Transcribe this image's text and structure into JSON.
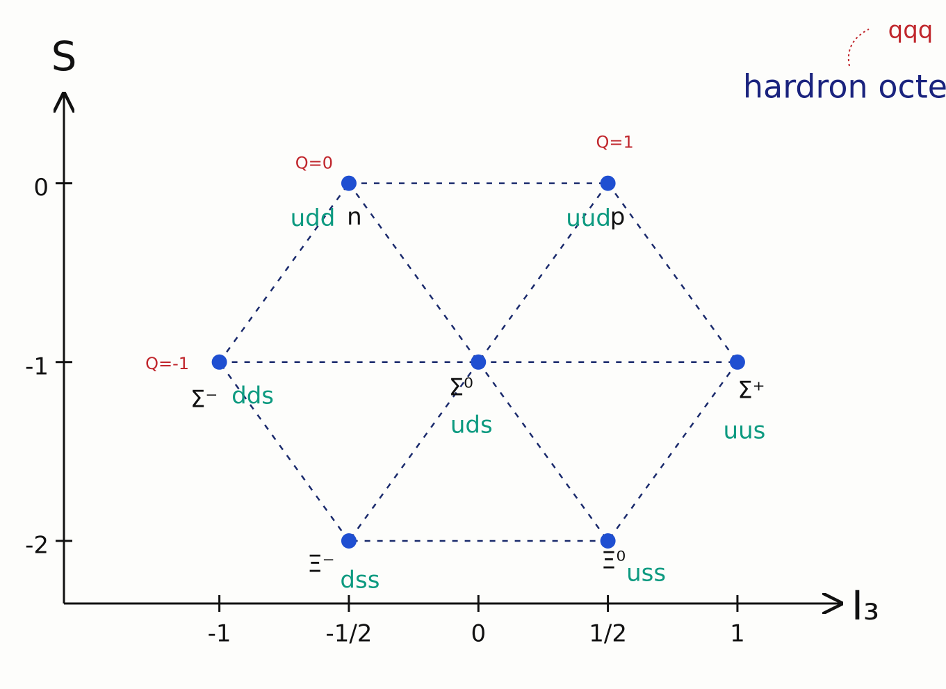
{
  "chart_data": {
    "type": "scatter",
    "x_label": "I₃",
    "y_label": "S",
    "annotation": "hardron octet",
    "annotation_note": "qqq",
    "x": [
      -0.5,
      0.5,
      -1,
      0,
      1,
      -0.5,
      0.5
    ],
    "y": [
      0,
      0,
      -1,
      -1,
      -1,
      -2,
      -2
    ],
    "labels": [
      "n",
      "p",
      "Σ⁻",
      "Σ⁰",
      "Σ⁺",
      "Ξ⁻",
      "Ξ⁰"
    ],
    "quarks": [
      "udd",
      "uud",
      "dds",
      "uds",
      "uus",
      "dss",
      "uss"
    ],
    "charges": [
      "Q=0",
      "Q=1",
      "Q=-1",
      null,
      null,
      null,
      null
    ],
    "color": "#1f4fd1",
    "xlim": [
      -1.6,
      1.4
    ],
    "ylim": [
      -2.35,
      0.5
    ],
    "xticks": [
      -1,
      {
        "value": -0.5,
        "label": "-1/2"
      },
      0,
      {
        "value": 0.5,
        "label": "1/2"
      },
      1
    ],
    "yticks": [
      0,
      -1,
      -2
    ]
  }
}
